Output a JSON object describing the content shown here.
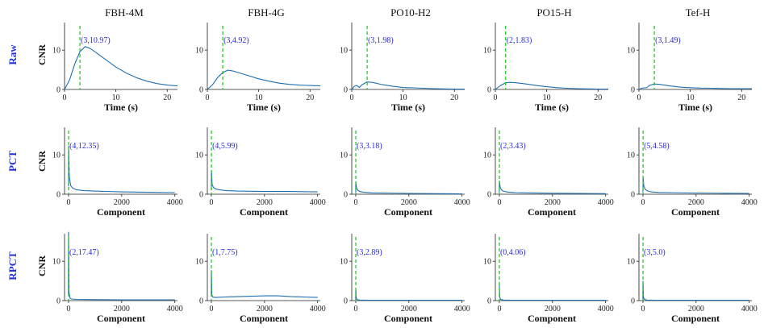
{
  "figure": {
    "columns": [
      "FBH-4M",
      "FBH-4G",
      "PO10-H2",
      "PO15-H",
      "Tef-H"
    ],
    "rows": [
      {
        "label": "Raw",
        "xlabel": "Time (s)",
        "ylabel": "CNR"
      },
      {
        "label": "PCT",
        "xlabel": "Component",
        "ylabel": "CNR"
      },
      {
        "label": "RPCT",
        "xlabel": "Component",
        "ylabel": "CNR"
      }
    ]
  },
  "chart_data": [
    {
      "type": "line",
      "row": "Raw",
      "panel": "FBH-4M",
      "xlim": [
        0,
        22
      ],
      "ylim": [
        0,
        17
      ],
      "xticks": [
        0,
        10,
        20
      ],
      "yticks": [
        0,
        10
      ],
      "xlabel": "Time (s)",
      "ylabel": "CNR",
      "peak": {
        "x": 3,
        "y": 10.97,
        "label": "(3,10.97)"
      },
      "series": [
        {
          "x": [
            0,
            1,
            2,
            3,
            4,
            5,
            6,
            8,
            10,
            12,
            14,
            16,
            18,
            20,
            22
          ],
          "y": [
            0,
            2.5,
            6.5,
            9.6,
            10.9,
            10.4,
            9.5,
            7.6,
            5.7,
            4.2,
            3.0,
            2.1,
            1.5,
            1.1,
            0.9
          ]
        }
      ]
    },
    {
      "type": "line",
      "row": "Raw",
      "panel": "FBH-4G",
      "xlim": [
        0,
        22
      ],
      "ylim": [
        0,
        17
      ],
      "xticks": [
        0,
        10,
        20
      ],
      "yticks": [
        0,
        10
      ],
      "xlabel": "Time (s)",
      "ylabel": "CNR",
      "peak": {
        "x": 3,
        "y": 4.92,
        "label": "(3,4.92)"
      },
      "series": [
        {
          "x": [
            0,
            1,
            2,
            3,
            4,
            5,
            6,
            8,
            10,
            12,
            14,
            16,
            18,
            20,
            22
          ],
          "y": [
            0,
            1.2,
            3.0,
            4.3,
            4.9,
            4.7,
            4.3,
            3.5,
            2.7,
            2.1,
            1.6,
            1.3,
            1.1,
            1.0,
            0.9
          ]
        }
      ]
    },
    {
      "type": "line",
      "row": "Raw",
      "panel": "PO10-H2",
      "xlim": [
        0,
        22
      ],
      "ylim": [
        0,
        17
      ],
      "xticks": [
        0,
        10,
        20
      ],
      "yticks": [
        0,
        10
      ],
      "xlabel": "Time (s)",
      "ylabel": "CNR",
      "peak": {
        "x": 3,
        "y": 1.98,
        "label": "(3,1.98)"
      },
      "series": [
        {
          "x": [
            0,
            0.5,
            1,
            1.5,
            2,
            3,
            4,
            6,
            8,
            10,
            12,
            14,
            16,
            18,
            20,
            22
          ],
          "y": [
            0,
            0.8,
            1.0,
            0.5,
            1.2,
            1.9,
            1.8,
            1.2,
            0.8,
            0.5,
            0.4,
            0.3,
            0.2,
            0.15,
            0.1,
            0.1
          ]
        }
      ]
    },
    {
      "type": "line",
      "row": "Raw",
      "panel": "PO15-H",
      "xlim": [
        0,
        22
      ],
      "ylim": [
        0,
        17
      ],
      "xticks": [
        0,
        10,
        20
      ],
      "yticks": [
        0,
        10
      ],
      "xlabel": "Time (s)",
      "ylabel": "CNR",
      "peak": {
        "x": 2,
        "y": 1.83,
        "label": "(2,1.83)"
      },
      "series": [
        {
          "x": [
            0,
            1,
            2,
            3,
            4,
            6,
            8,
            10,
            12,
            14,
            16,
            18,
            20,
            22
          ],
          "y": [
            0,
            1.0,
            1.7,
            1.8,
            1.7,
            1.4,
            1.0,
            0.7,
            0.45,
            0.3,
            0.2,
            0.15,
            0.1,
            0.1
          ]
        }
      ]
    },
    {
      "type": "line",
      "row": "Raw",
      "panel": "Tef-H",
      "xlim": [
        0,
        22
      ],
      "ylim": [
        0,
        17
      ],
      "xticks": [
        0,
        10,
        20
      ],
      "yticks": [
        0,
        10
      ],
      "xlabel": "Time (s)",
      "ylabel": "CNR",
      "peak": {
        "x": 3,
        "y": 1.49,
        "label": "(3,1.49)"
      },
      "series": [
        {
          "x": [
            0,
            0.5,
            1,
            1.5,
            2,
            3,
            4,
            6,
            8,
            10,
            12,
            14,
            16,
            18,
            20,
            22
          ],
          "y": [
            0,
            0.3,
            0.4,
            0.4,
            1.0,
            1.4,
            1.3,
            0.9,
            0.6,
            0.45,
            0.35,
            0.3,
            0.25,
            0.2,
            0.2,
            0.2
          ]
        }
      ]
    },
    {
      "type": "line",
      "row": "PCT",
      "panel": "FBH-4M",
      "xlim": [
        -150,
        4100
      ],
      "ylim": [
        0,
        17
      ],
      "xticks": [
        0,
        2000,
        4000
      ],
      "yticks": [
        0,
        10
      ],
      "xlabel": "Component",
      "ylabel": "CNR",
      "peak": {
        "x": 4,
        "y": 12.35,
        "label": "(4,12.35)"
      },
      "series": [
        {
          "x": [
            0,
            4,
            30,
            80,
            150,
            300,
            600,
            1000,
            2000,
            3000,
            4000
          ],
          "y": [
            2,
            12.35,
            4.5,
            2.2,
            1.6,
            1.1,
            0.9,
            0.8,
            0.6,
            0.5,
            0.4
          ]
        }
      ]
    },
    {
      "type": "line",
      "row": "PCT",
      "panel": "FBH-4G",
      "xlim": [
        -150,
        4100
      ],
      "ylim": [
        0,
        17
      ],
      "xticks": [
        0,
        2000,
        4000
      ],
      "yticks": [
        0,
        10
      ],
      "xlabel": "Component",
      "ylabel": "CNR",
      "peak": {
        "x": 4,
        "y": 5.99,
        "label": "(4,5.99)"
      },
      "series": [
        {
          "x": [
            0,
            4,
            30,
            80,
            150,
            300,
            600,
            1000,
            2000,
            3000,
            4000
          ],
          "y": [
            1,
            5.99,
            2.5,
            1.7,
            1.4,
            1.1,
            0.9,
            0.8,
            0.7,
            0.7,
            0.6
          ]
        }
      ]
    },
    {
      "type": "line",
      "row": "PCT",
      "panel": "PO10-H2",
      "xlim": [
        -150,
        4100
      ],
      "ylim": [
        0,
        17
      ],
      "xticks": [
        0,
        2000,
        4000
      ],
      "yticks": [
        0,
        10
      ],
      "xlabel": "Component",
      "ylabel": "CNR",
      "peak": {
        "x": 3,
        "y": 3.18,
        "label": "(3,3.18)"
      },
      "series": [
        {
          "x": [
            0,
            3,
            30,
            80,
            150,
            300,
            600,
            1000,
            2000,
            3000,
            4000
          ],
          "y": [
            0.5,
            3.18,
            1.6,
            1.0,
            0.7,
            0.5,
            0.35,
            0.3,
            0.2,
            0.15,
            0.1
          ]
        }
      ]
    },
    {
      "type": "line",
      "row": "PCT",
      "panel": "PO15-H",
      "xlim": [
        -150,
        4100
      ],
      "ylim": [
        0,
        17
      ],
      "xticks": [
        0,
        2000,
        4000
      ],
      "yticks": [
        0,
        10
      ],
      "xlabel": "Component",
      "ylabel": "CNR",
      "peak": {
        "x": 2,
        "y": 3.43,
        "label": "(2,3.43)"
      },
      "series": [
        {
          "x": [
            0,
            2,
            30,
            80,
            150,
            300,
            600,
            1000,
            2000,
            3000,
            4000
          ],
          "y": [
            0.5,
            3.43,
            1.8,
            1.1,
            0.8,
            0.55,
            0.4,
            0.35,
            0.25,
            0.2,
            0.15
          ]
        }
      ]
    },
    {
      "type": "line",
      "row": "PCT",
      "panel": "Tef-H",
      "xlim": [
        -150,
        4100
      ],
      "ylim": [
        0,
        17
      ],
      "xticks": [
        0,
        2000,
        4000
      ],
      "yticks": [
        0,
        10
      ],
      "xlabel": "Component",
      "ylabel": "CNR",
      "peak": {
        "x": 5,
        "y": 4.58,
        "label": "(5,4.58)"
      },
      "series": [
        {
          "x": [
            0,
            5,
            30,
            80,
            150,
            300,
            600,
            1000,
            2000,
            3000,
            4000
          ],
          "y": [
            0.5,
            4.58,
            2.2,
            1.3,
            0.9,
            0.6,
            0.45,
            0.4,
            0.3,
            0.25,
            0.2
          ]
        }
      ]
    },
    {
      "type": "line",
      "row": "RPCT",
      "panel": "FBH-4M",
      "xlim": [
        -150,
        4100
      ],
      "ylim": [
        0,
        17
      ],
      "xticks": [
        0,
        2000,
        4000
      ],
      "yticks": [
        0,
        10
      ],
      "xlabel": "Component",
      "ylabel": "CNR",
      "peak": {
        "x": 2,
        "y": 17.47,
        "label": "(2,17.47)"
      },
      "series": [
        {
          "x": [
            0,
            2,
            20,
            60,
            120,
            300,
            1000,
            2000,
            3000,
            4000
          ],
          "y": [
            1,
            17.47,
            2,
            0.6,
            0.4,
            0.3,
            0.25,
            0.2,
            0.2,
            0.2
          ]
        }
      ]
    },
    {
      "type": "line",
      "row": "RPCT",
      "panel": "FBH-4G",
      "xlim": [
        -150,
        4100
      ],
      "ylim": [
        0,
        17
      ],
      "xticks": [
        0,
        2000,
        4000
      ],
      "yticks": [
        0,
        10
      ],
      "xlabel": "Component",
      "ylabel": "CNR",
      "peak": {
        "x": 1,
        "y": 7.75,
        "label": "(1,7.75)"
      },
      "series": [
        {
          "x": [
            0,
            1,
            20,
            60,
            150,
            500,
            1000,
            1500,
            2000,
            2500,
            3000,
            3500,
            4000
          ],
          "y": [
            1,
            7.75,
            1.4,
            0.9,
            0.8,
            0.9,
            1.0,
            1.1,
            1.2,
            1.2,
            1.0,
            0.9,
            0.8
          ]
        }
      ]
    },
    {
      "type": "line",
      "row": "RPCT",
      "panel": "PO10-H2",
      "xlim": [
        -150,
        4100
      ],
      "ylim": [
        0,
        17
      ],
      "xticks": [
        0,
        2000,
        4000
      ],
      "yticks": [
        0,
        10
      ],
      "xlabel": "Component",
      "ylabel": "CNR",
      "peak": {
        "x": 3,
        "y": 2.89,
        "label": "(3,2.89)"
      },
      "series": [
        {
          "x": [
            0,
            3,
            20,
            60,
            150,
            500,
            1000,
            2000,
            3000,
            4000
          ],
          "y": [
            0.3,
            2.89,
            0.6,
            0.25,
            0.15,
            0.1,
            0.1,
            0.1,
            0.1,
            0.1
          ]
        }
      ]
    },
    {
      "type": "line",
      "row": "RPCT",
      "panel": "PO15-H",
      "xlim": [
        -150,
        4100
      ],
      "ylim": [
        0,
        17
      ],
      "xticks": [
        0,
        2000,
        4000
      ],
      "yticks": [
        0,
        10
      ],
      "xlabel": "Component",
      "ylabel": "CNR",
      "peak": {
        "x": 0,
        "y": 4.06,
        "label": "(0,4.06)"
      },
      "series": [
        {
          "x": [
            0,
            15,
            50,
            150,
            500,
            1000,
            2000,
            3000,
            4000
          ],
          "y": [
            4.06,
            0.8,
            0.3,
            0.15,
            0.1,
            0.1,
            0.1,
            0.1,
            0.1
          ]
        }
      ]
    },
    {
      "type": "line",
      "row": "RPCT",
      "panel": "Tef-H",
      "xlim": [
        -150,
        4100
      ],
      "ylim": [
        0,
        17
      ],
      "xticks": [
        0,
        2000,
        4000
      ],
      "yticks": [
        0,
        10
      ],
      "xlabel": "Component",
      "ylabel": "CNR",
      "peak": {
        "x": 3,
        "y": 5.0,
        "label": "(3,5.0)"
      },
      "series": [
        {
          "x": [
            0,
            3,
            20,
            60,
            150,
            500,
            1000,
            2000,
            3000,
            4000
          ],
          "y": [
            0.3,
            5.0,
            0.8,
            0.3,
            0.15,
            0.1,
            0.1,
            0.1,
            0.1,
            0.1
          ]
        }
      ]
    }
  ]
}
